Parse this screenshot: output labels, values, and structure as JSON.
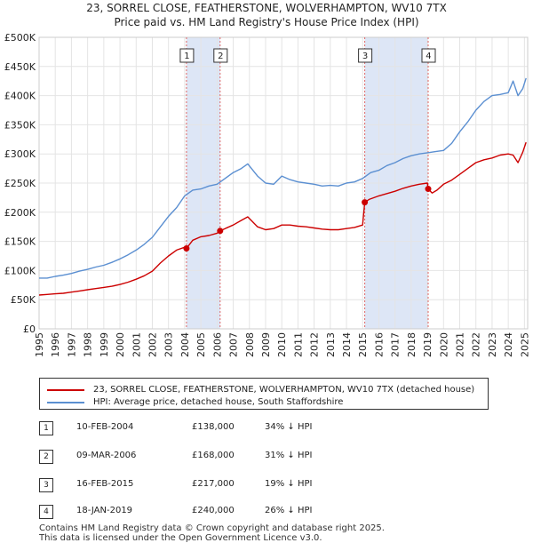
{
  "title": {
    "line1": "23, SORREL CLOSE, FEATHERSTONE, WOLVERHAMPTON, WV10 7TX",
    "line2": "Price paid vs. HM Land Registry's House Price Index (HPI)"
  },
  "colors": {
    "property": "#cc0000",
    "hpi": "#5b8fd1",
    "shade": "#dde6f6",
    "vline": "#dd6666"
  },
  "chart_data": {
    "type": "line",
    "title": "23, SORREL CLOSE, FEATHERSTONE, WOLVERHAMPTON, WV10 7TX — Price paid vs. HM Land Registry's House Price Index (HPI)",
    "xlim": [
      1995.0,
      2025.2
    ],
    "ylim": [
      0,
      500000
    ],
    "y_ticks": [
      0,
      50000,
      100000,
      150000,
      200000,
      250000,
      300000,
      350000,
      400000,
      450000,
      500000
    ],
    "y_tick_labels": [
      "£0",
      "£50K",
      "£100K",
      "£150K",
      "£200K",
      "£250K",
      "£300K",
      "£350K",
      "£400K",
      "£450K",
      "£500K"
    ],
    "x_tick_labels": [
      "1995",
      "1996",
      "1997",
      "1998",
      "1999",
      "2000",
      "2001",
      "2002",
      "2003",
      "2004",
      "2005",
      "2006",
      "2007",
      "2008",
      "2009",
      "2010",
      "2011",
      "2012",
      "2013",
      "2014",
      "2015",
      "2016",
      "2017",
      "2018",
      "2019",
      "2020",
      "2021",
      "2022",
      "2023",
      "2024",
      "2025"
    ],
    "grid": true,
    "shaded_ranges": [
      [
        2004.11,
        2006.19
      ],
      [
        2015.13,
        2019.05
      ]
    ],
    "series": [
      {
        "name": "HPI: Average price, detached house, South Staffordshire",
        "x": [
          1995.0,
          1995.5,
          1996.0,
          1996.5,
          1997.0,
          1997.5,
          1998.0,
          1998.5,
          1999.0,
          1999.5,
          2000.0,
          2000.5,
          2001.0,
          2001.5,
          2002.0,
          2002.5,
          2003.0,
          2003.5,
          2004.0,
          2004.5,
          2005.0,
          2005.5,
          2006.0,
          2006.5,
          2007.0,
          2007.5,
          2007.9,
          2008.5,
          2009.0,
          2009.5,
          2010.0,
          2010.5,
          2011.0,
          2011.5,
          2012.0,
          2012.5,
          2013.0,
          2013.5,
          2014.0,
          2014.5,
          2015.0,
          2015.5,
          2016.0,
          2016.5,
          2017.0,
          2017.5,
          2018.0,
          2018.5,
          2019.0,
          2019.5,
          2020.0,
          2020.5,
          2021.0,
          2021.5,
          2022.0,
          2022.5,
          2023.0,
          2023.5,
          2024.0,
          2024.3,
          2024.6,
          2024.9,
          2025.1
        ],
        "values": [
          87000,
          87000,
          90000,
          92000,
          95000,
          99000,
          102000,
          106000,
          109000,
          114000,
          120000,
          127000,
          135000,
          145000,
          157000,
          175000,
          193000,
          208000,
          228000,
          238000,
          240000,
          245000,
          248000,
          258000,
          268000,
          275000,
          283000,
          262000,
          250000,
          248000,
          262000,
          256000,
          252000,
          250000,
          248000,
          245000,
          246000,
          245000,
          250000,
          252000,
          258000,
          268000,
          272000,
          280000,
          285000,
          292000,
          297000,
          300000,
          302000,
          304000,
          306000,
          318000,
          338000,
          355000,
          375000,
          390000,
          400000,
          402000,
          405000,
          425000,
          400000,
          412000,
          430000
        ]
      },
      {
        "name": "23, SORREL CLOSE, FEATHERSTONE, WOLVERHAMPTON, WV10 7TX (detached house)",
        "x": [
          1995.0,
          1995.5,
          1996.0,
          1996.5,
          1997.0,
          1997.5,
          1998.0,
          1998.5,
          1999.0,
          1999.5,
          2000.0,
          2000.5,
          2001.0,
          2001.5,
          2002.0,
          2002.5,
          2003.0,
          2003.5,
          2004.0,
          2004.11,
          2004.5,
          2005.0,
          2005.5,
          2006.0,
          2006.19,
          2006.5,
          2007.0,
          2007.5,
          2007.9,
          2008.5,
          2009.0,
          2009.5,
          2010.0,
          2010.5,
          2011.0,
          2011.5,
          2012.0,
          2012.5,
          2013.0,
          2013.5,
          2014.0,
          2014.5,
          2015.0,
          2015.13,
          2015.4,
          2016.0,
          2016.5,
          2017.0,
          2017.5,
          2018.0,
          2018.5,
          2019.0,
          2019.05,
          2019.3,
          2019.6,
          2020.0,
          2020.5,
          2021.0,
          2021.5,
          2022.0,
          2022.5,
          2023.0,
          2023.5,
          2024.0,
          2024.3,
          2024.6,
          2024.9,
          2025.1
        ],
        "values": [
          58000,
          59000,
          60000,
          61000,
          63000,
          65000,
          67000,
          69000,
          71000,
          73000,
          76000,
          80000,
          85000,
          91000,
          99000,
          113000,
          125000,
          135000,
          140000,
          138000,
          152000,
          158000,
          160000,
          164000,
          168000,
          172000,
          178000,
          186000,
          192000,
          175000,
          170000,
          172000,
          178000,
          178000,
          176000,
          175000,
          173000,
          171000,
          170000,
          170000,
          172000,
          174000,
          178000,
          217000,
          222000,
          228000,
          232000,
          236000,
          241000,
          245000,
          248000,
          250000,
          240000,
          233000,
          238000,
          248000,
          255000,
          265000,
          275000,
          285000,
          290000,
          293000,
          298000,
          300000,
          298000,
          285000,
          303000,
          320000
        ]
      }
    ],
    "transactions": [
      {
        "num": "1",
        "x": 2004.11,
        "value": 138000
      },
      {
        "num": "2",
        "x": 2006.19,
        "value": 168000
      },
      {
        "num": "3",
        "x": 2015.13,
        "value": 217000
      },
      {
        "num": "4",
        "x": 2019.05,
        "value": 240000
      }
    ]
  },
  "legend": {
    "property": "23, SORREL CLOSE, FEATHERSTONE, WOLVERHAMPTON, WV10 7TX (detached house)",
    "hpi": "HPI: Average price, detached house, South Staffordshire"
  },
  "table": [
    {
      "num": "1",
      "date": "10-FEB-2004",
      "price": "£138,000",
      "rel": "34% ↓ HPI"
    },
    {
      "num": "2",
      "date": "09-MAR-2006",
      "price": "£168,000",
      "rel": "31% ↓ HPI"
    },
    {
      "num": "3",
      "date": "16-FEB-2015",
      "price": "£217,000",
      "rel": "19% ↓ HPI"
    },
    {
      "num": "4",
      "date": "18-JAN-2019",
      "price": "£240,000",
      "rel": "26% ↓ HPI"
    }
  ],
  "footer": {
    "line1": "Contains HM Land Registry data © Crown copyright and database right 2025.",
    "line2": "This data is licensed under the Open Government Licence v3.0."
  }
}
